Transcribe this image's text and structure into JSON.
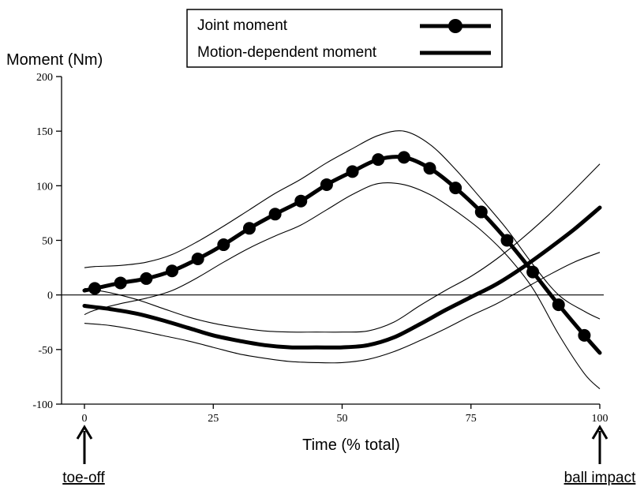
{
  "chart_data": {
    "type": "line",
    "title": "",
    "xlabel": "Time (% total)",
    "ylabel": "Moment (Nm)",
    "xlim": [
      0,
      100
    ],
    "ylim": [
      -100,
      200
    ],
    "x_ticks": [
      0,
      25,
      50,
      75,
      100
    ],
    "y_ticks": [
      -100,
      -50,
      0,
      50,
      100,
      150,
      200
    ],
    "grid": false,
    "zero_line": true,
    "legend": {
      "position": "top-center",
      "entries": [
        {
          "label": "Joint moment",
          "marker": "circle"
        },
        {
          "label": "Motion-dependent moment",
          "marker": "none"
        }
      ]
    },
    "series": [
      {
        "name": "Joint moment",
        "x": [
          0,
          2,
          7,
          12,
          17,
          22,
          27,
          32,
          37,
          42,
          47,
          52,
          57,
          62,
          67,
          72,
          77,
          82,
          87,
          92,
          97,
          100
        ],
        "y": [
          4,
          6,
          11,
          15,
          22,
          33,
          46,
          61,
          74,
          86,
          101,
          113,
          124,
          126,
          116,
          98,
          76,
          50,
          21,
          -9,
          -37,
          -53
        ],
        "upper": [
          25,
          26,
          27,
          30,
          37,
          49,
          63,
          78,
          93,
          106,
          121,
          134,
          146,
          150,
          138,
          115,
          88,
          60,
          28,
          0,
          -15,
          -22
        ],
        "lower": [
          -18,
          -14,
          -8,
          -3,
          4,
          16,
          30,
          43,
          54,
          64,
          78,
          92,
          102,
          101,
          92,
          77,
          59,
          36,
          6,
          -36,
          -72,
          -86
        ]
      },
      {
        "name": "Motion-dependent moment",
        "x": [
          0,
          5,
          10,
          15,
          20,
          25,
          30,
          35,
          40,
          45,
          50,
          55,
          60,
          65,
          70,
          75,
          80,
          85,
          90,
          95,
          100
        ],
        "y": [
          -10,
          -13,
          -17,
          -23,
          -30,
          -37,
          -42,
          -46,
          -48,
          -48,
          -48,
          -46,
          -39,
          -27,
          -14,
          -2,
          10,
          25,
          42,
          60,
          80
        ],
        "upper": [
          6,
          2,
          -4,
          -12,
          -20,
          -26,
          -30,
          -33,
          -34,
          -34,
          -34,
          -33,
          -25,
          -10,
          4,
          17,
          33,
          52,
          73,
          96,
          120
        ],
        "lower": [
          -26,
          -28,
          -32,
          -37,
          -42,
          -48,
          -54,
          -58,
          -61,
          -62,
          -62,
          -59,
          -52,
          -42,
          -31,
          -19,
          -8,
          5,
          18,
          30,
          39
        ]
      }
    ],
    "annotations": [
      {
        "text": "toe-off",
        "x": 0
      },
      {
        "text": "ball impact",
        "x": 100
      }
    ]
  }
}
